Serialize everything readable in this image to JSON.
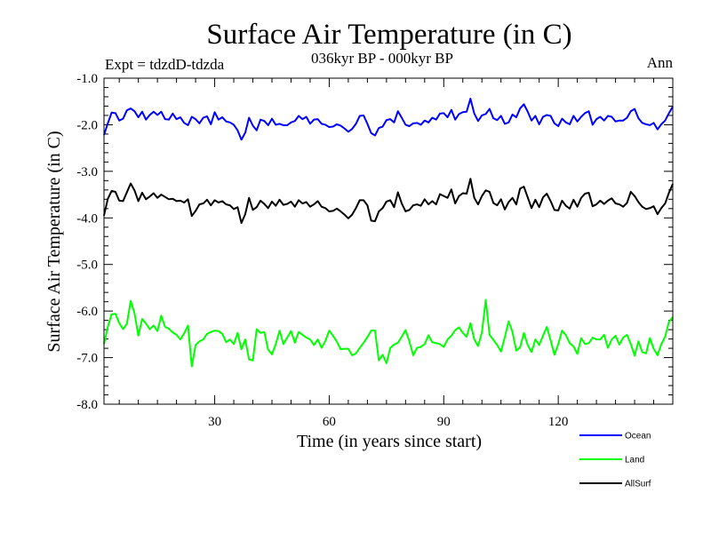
{
  "chart_data": {
    "type": "line",
    "title": "Surface Air Temperature (in C)",
    "subtitle": "036kyr BP - 000kyr BP",
    "left_annotation": "Expt = tdzdD-tdzda",
    "right_annotation": "Ann",
    "xlabel": "Time (in years since start)",
    "ylabel": "Surface Air Temperature (in C)",
    "xlim": [
      1,
      150
    ],
    "ylim": [
      -8.0,
      -1.0
    ],
    "x_ticks": [
      30,
      60,
      90,
      120
    ],
    "x_tick_labels": [
      "30",
      "60",
      "90",
      "120"
    ],
    "y_ticks": [
      -1.0,
      -2.0,
      -3.0,
      -4.0,
      -5.0,
      -6.0,
      -7.0,
      -8.0
    ],
    "y_tick_labels": [
      "-1.0",
      "-2.0",
      "-3.0",
      "-4.0",
      "-5.0",
      "-6.0",
      "-7.0",
      "-8.0"
    ],
    "grid": false,
    "legend_position": "bottom-right",
    "series": [
      {
        "name": "Ocean",
        "color": "#0000ff",
        "values": [
          -2.22,
          -1.97,
          -1.74,
          -1.75,
          -1.91,
          -1.87,
          -1.69,
          -1.65,
          -1.71,
          -1.84,
          -1.72,
          -1.89,
          -1.79,
          -1.72,
          -1.79,
          -1.72,
          -1.88,
          -1.89,
          -1.76,
          -1.88,
          -1.84,
          -1.96,
          -2.01,
          -1.83,
          -1.88,
          -1.97,
          -1.85,
          -1.82,
          -1.99,
          -1.73,
          -1.89,
          -1.84,
          -1.93,
          -1.95,
          -2.0,
          -2.12,
          -2.32,
          -2.17,
          -1.85,
          -2.02,
          -2.12,
          -1.89,
          -1.92,
          -2.01,
          -1.87,
          -2.0,
          -1.98,
          -2.01,
          -2.01,
          -1.95,
          -1.92,
          -1.81,
          -1.88,
          -1.83,
          -1.98,
          -1.89,
          -1.88,
          -1.98,
          -2.0,
          -2.05,
          -2.04,
          -1.99,
          -2.02,
          -2.08,
          -2.15,
          -2.09,
          -1.98,
          -1.81,
          -1.8,
          -1.98,
          -2.18,
          -2.23,
          -2.07,
          -2.04,
          -1.9,
          -1.88,
          -1.95,
          -1.71,
          -1.85,
          -2.0,
          -2.03,
          -1.97,
          -1.96,
          -2.0,
          -1.91,
          -1.95,
          -1.85,
          -1.89,
          -1.76,
          -1.75,
          -1.84,
          -1.68,
          -1.89,
          -1.77,
          -1.73,
          -1.72,
          -1.44,
          -1.76,
          -1.92,
          -1.8,
          -1.77,
          -1.66,
          -1.86,
          -1.9,
          -1.81,
          -1.98,
          -1.95,
          -1.78,
          -1.84,
          -1.65,
          -1.56,
          -1.72,
          -1.91,
          -1.81,
          -1.99,
          -1.83,
          -1.79,
          -1.81,
          -1.97,
          -2.03,
          -1.87,
          -1.95,
          -1.99,
          -1.81,
          -1.93,
          -1.83,
          -1.75,
          -1.71,
          -2.0,
          -1.88,
          -1.83,
          -1.91,
          -1.81,
          -1.83,
          -1.93,
          -1.91,
          -1.91,
          -1.85,
          -1.71,
          -1.66,
          -1.86,
          -1.96,
          -1.99,
          -2.01,
          -1.96,
          -2.1,
          -1.99,
          -1.91,
          -1.75,
          -1.61
        ]
      },
      {
        "name": "Land",
        "color": "#00ff00",
        "values": [
          -6.71,
          -6.34,
          -6.07,
          -6.06,
          -6.26,
          -6.39,
          -6.27,
          -5.78,
          -6.05,
          -6.53,
          -6.17,
          -6.27,
          -6.39,
          -6.31,
          -6.43,
          -6.1,
          -6.34,
          -6.38,
          -6.46,
          -6.51,
          -6.61,
          -6.48,
          -6.31,
          -7.19,
          -6.73,
          -6.65,
          -6.61,
          -6.49,
          -6.45,
          -6.42,
          -6.43,
          -6.49,
          -6.67,
          -6.61,
          -6.71,
          -6.47,
          -6.82,
          -6.61,
          -7.04,
          -7.06,
          -6.39,
          -6.47,
          -6.45,
          -6.83,
          -6.93,
          -6.71,
          -6.42,
          -6.71,
          -6.57,
          -6.43,
          -6.68,
          -6.45,
          -6.51,
          -6.57,
          -6.61,
          -6.73,
          -6.61,
          -6.79,
          -6.64,
          -6.42,
          -6.53,
          -6.66,
          -6.82,
          -6.81,
          -6.81,
          -6.95,
          -6.91,
          -6.79,
          -6.68,
          -6.56,
          -6.42,
          -6.42,
          -7.06,
          -6.94,
          -7.12,
          -6.79,
          -6.72,
          -6.68,
          -6.55,
          -6.41,
          -6.65,
          -6.95,
          -6.79,
          -6.77,
          -6.71,
          -6.52,
          -6.67,
          -6.69,
          -6.71,
          -6.77,
          -6.61,
          -6.53,
          -6.41,
          -6.35,
          -6.47,
          -6.55,
          -6.26,
          -6.61,
          -6.75,
          -6.46,
          -5.76,
          -6.51,
          -6.62,
          -6.73,
          -6.87,
          -6.56,
          -6.22,
          -6.45,
          -6.85,
          -6.78,
          -6.47,
          -6.73,
          -6.88,
          -6.61,
          -6.73,
          -6.53,
          -6.34,
          -6.63,
          -6.94,
          -6.71,
          -6.42,
          -6.52,
          -6.69,
          -6.76,
          -6.92,
          -6.58,
          -6.71,
          -6.69,
          -6.57,
          -6.61,
          -6.61,
          -6.51,
          -6.79,
          -6.61,
          -6.53,
          -6.72,
          -6.57,
          -6.51,
          -6.71,
          -6.96,
          -6.65,
          -6.88,
          -6.91,
          -6.58,
          -6.81,
          -6.95,
          -6.71,
          -6.55,
          -6.23,
          -6.13
        ]
      },
      {
        "name": "AllSurf",
        "color": "#000000",
        "values": [
          -3.95,
          -3.59,
          -3.42,
          -3.44,
          -3.63,
          -3.64,
          -3.45,
          -3.26,
          -3.41,
          -3.64,
          -3.46,
          -3.6,
          -3.54,
          -3.47,
          -3.57,
          -3.5,
          -3.55,
          -3.6,
          -3.59,
          -3.64,
          -3.63,
          -3.67,
          -3.6,
          -3.96,
          -3.85,
          -3.71,
          -3.69,
          -3.61,
          -3.73,
          -3.62,
          -3.67,
          -3.64,
          -3.71,
          -3.73,
          -3.81,
          -3.77,
          -4.11,
          -3.92,
          -3.57,
          -3.83,
          -3.77,
          -3.63,
          -3.7,
          -3.79,
          -3.65,
          -3.74,
          -3.61,
          -3.72,
          -3.7,
          -3.65,
          -3.76,
          -3.62,
          -3.69,
          -3.66,
          -3.76,
          -3.71,
          -3.64,
          -3.76,
          -3.79,
          -3.86,
          -3.85,
          -3.8,
          -3.86,
          -3.93,
          -4.01,
          -3.93,
          -3.79,
          -3.62,
          -3.62,
          -3.73,
          -4.06,
          -4.07,
          -3.86,
          -3.79,
          -3.65,
          -3.62,
          -3.77,
          -3.45,
          -3.69,
          -3.86,
          -3.83,
          -3.73,
          -3.71,
          -3.74,
          -3.6,
          -3.71,
          -3.64,
          -3.71,
          -3.49,
          -3.53,
          -3.57,
          -3.39,
          -3.69,
          -3.53,
          -3.47,
          -3.48,
          -3.16,
          -3.57,
          -3.71,
          -3.53,
          -3.41,
          -3.44,
          -3.68,
          -3.73,
          -3.6,
          -3.82,
          -3.66,
          -3.57,
          -3.71,
          -3.37,
          -3.33,
          -3.56,
          -3.79,
          -3.61,
          -3.77,
          -3.56,
          -3.48,
          -3.64,
          -3.83,
          -3.84,
          -3.63,
          -3.74,
          -3.8,
          -3.61,
          -3.76,
          -3.57,
          -3.48,
          -3.46,
          -3.75,
          -3.71,
          -3.63,
          -3.7,
          -3.63,
          -3.58,
          -3.69,
          -3.71,
          -3.76,
          -3.68,
          -3.44,
          -3.53,
          -3.66,
          -3.76,
          -3.81,
          -3.79,
          -3.75,
          -3.92,
          -3.79,
          -3.69,
          -3.46,
          -3.27
        ]
      }
    ]
  }
}
